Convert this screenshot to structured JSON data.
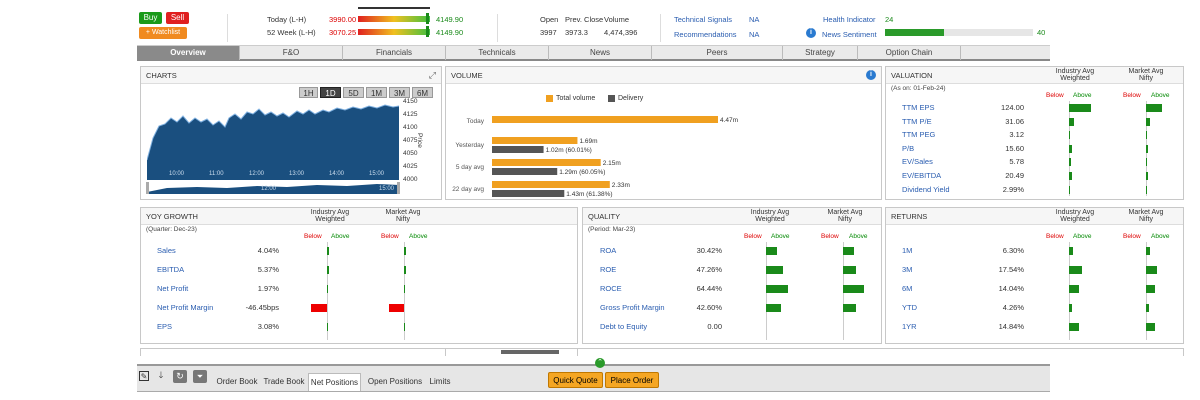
{
  "header": {
    "buy": "Buy",
    "sell": "Sell",
    "watchlist": "+ Watchlist",
    "today_label": "Today (L-H)",
    "today_low": "3990.00",
    "today_high": "4149.90",
    "week52_label": "52 Week (L-H)",
    "week52_low": "3070.25",
    "week52_high": "4149.90",
    "open_label": "Open",
    "open_val": "3997",
    "prev_close_label": "Prev. Close",
    "prev_close_val": "3973.3",
    "volume_label": "Volume",
    "volume_val": "4,474,396",
    "tech_signals_label": "Technical Signals",
    "tech_signals_val": "NA",
    "recommend_label": "Recommendations",
    "recommend_val": "NA",
    "health_label": "Health Indicator",
    "health_val": "24",
    "sentiment_label": "News Sentiment",
    "sentiment_val": "40",
    "sentiment_level": 0.4,
    "health_level": 0.24
  },
  "tabs": [
    "Overview",
    "F&O",
    "Financials",
    "Technicals",
    "News",
    "Peers",
    "Strategy",
    "Option Chain"
  ],
  "charts": {
    "title": "CHARTS",
    "ranges": [
      "1H",
      "1D",
      "5D",
      "1M",
      "3M",
      "6M"
    ],
    "active": "1D",
    "y_ticks": [
      "4150",
      "4125",
      "4100",
      "4075",
      "4050",
      "4025",
      "4000"
    ],
    "x_ticks": [
      "10:00",
      "11:00",
      "12:00",
      "13:00",
      "14:00",
      "15:00"
    ],
    "nav_ticks": [
      "12:00",
      "15:00"
    ],
    "price_label": "Price"
  },
  "chart_data": {
    "type": "bar",
    "title": "VOLUME",
    "legend": [
      "Total volume",
      "Delivery"
    ],
    "categories": [
      "Today",
      "Yesterday",
      "5 day avg",
      "22 day avg"
    ],
    "series": [
      {
        "name": "Total volume",
        "values": [
          4.47,
          1.69,
          2.15,
          2.33
        ],
        "labels": [
          "4.47m",
          "1.69m",
          "2.15m",
          "2.33m"
        ],
        "color": "#f0a020"
      },
      {
        "name": "Delivery",
        "values": [
          null,
          1.02,
          1.29,
          1.43
        ],
        "labels": [
          "",
          "1.02m (60.01%)",
          "1.29m (60.05%)",
          "1.43m (61.38%)"
        ],
        "color": "#555555"
      }
    ]
  },
  "valuation": {
    "title": "VALUATION",
    "sub": "(As on: 01-Feb-24)",
    "col1": "Industry Avg Weighted",
    "col2": "Market Avg Nifty",
    "below": "Below",
    "above": "Above",
    "rows": [
      {
        "label": "TTM EPS",
        "value": "124.00"
      },
      {
        "label": "TTM P/E",
        "value": "31.06"
      },
      {
        "label": "TTM PEG",
        "value": "3.12"
      },
      {
        "label": "P/B",
        "value": "15.60"
      },
      {
        "label": "EV/Sales",
        "value": "5.78"
      },
      {
        "label": "EV/EBITDA",
        "value": "20.49"
      },
      {
        "label": "Dividend Yield",
        "value": "2.99%"
      }
    ]
  },
  "yoy": {
    "title": "YOY GROWTH",
    "sub": "(Quarter: Dec-23)",
    "col1": "Industry Avg Weighted",
    "col2": "Market Avg Nifty",
    "below": "Below",
    "above": "Above",
    "rows": [
      {
        "label": "Sales",
        "value": "4.04%"
      },
      {
        "label": "EBITDA",
        "value": "5.37%"
      },
      {
        "label": "Net Profit",
        "value": "1.97%"
      },
      {
        "label": "Net Profit Margin",
        "value": "-46.45bps"
      },
      {
        "label": "EPS",
        "value": "3.08%"
      }
    ]
  },
  "quality": {
    "title": "QUALITY",
    "sub": "(Period: Mar-23)",
    "col1": "Industry Avg Weighted",
    "col2": "Market Avg Nifty",
    "below": "Below",
    "above": "Above",
    "rows": [
      {
        "label": "ROA",
        "value": "30.42%"
      },
      {
        "label": "ROE",
        "value": "47.26%"
      },
      {
        "label": "ROCE",
        "value": "64.44%"
      },
      {
        "label": "Gross Profit Margin",
        "value": "42.60%"
      },
      {
        "label": "Debt to Equity",
        "value": "0.00"
      }
    ]
  },
  "returns": {
    "title": "RETURNS",
    "col1": "Industry Avg Weighted",
    "col2": "Market Avg Nifty",
    "below": "Below",
    "above": "Above",
    "rows": [
      {
        "label": "1M",
        "value": "6.30%"
      },
      {
        "label": "3M",
        "value": "17.54%"
      },
      {
        "label": "6M",
        "value": "14.04%"
      },
      {
        "label": "YTD",
        "value": "4.26%"
      },
      {
        "label": "1YR",
        "value": "14.84%"
      }
    ]
  },
  "bottom": {
    "tabs": [
      "Order Book",
      "Trade Book",
      "Net Positions",
      "Open Positions",
      "Limits"
    ],
    "active": "Net Positions",
    "quick_quote": "Quick Quote",
    "place_order": "Place Order"
  }
}
